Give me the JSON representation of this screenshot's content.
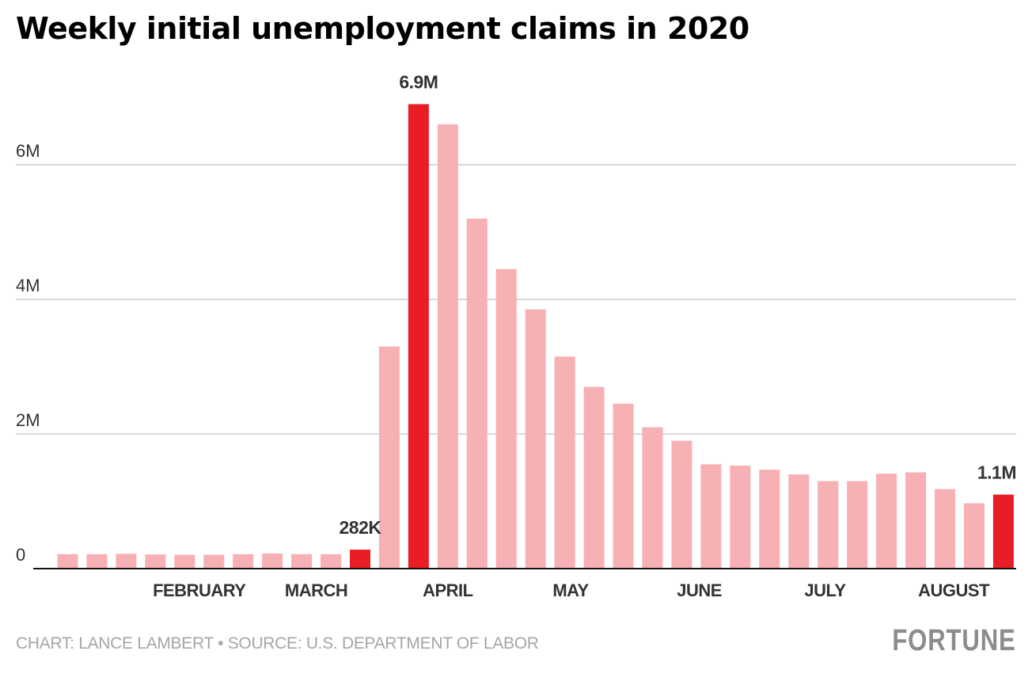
{
  "title": "Weekly initial unemployment claims in 2020",
  "footer": {
    "credit": "CHART: LANCE LAMBERT • SOURCE: U.S. DEPARTMENT OF LABOR",
    "logo": "FORTUNE"
  },
  "colors": {
    "bar": "#f7b0b4",
    "highlight": "#e91d25",
    "grid": "#cccccc",
    "axis": "#111111",
    "text": "#333333"
  },
  "chart_data": {
    "type": "bar",
    "ylim": [
      0,
      7000000
    ],
    "yticks": [
      {
        "value": 0,
        "label": "0"
      },
      {
        "value": 2000000,
        "label": "2M"
      },
      {
        "value": 4000000,
        "label": "4M"
      },
      {
        "value": 6000000,
        "label": "6M"
      }
    ],
    "grid": true,
    "month_labels": [
      {
        "label": "FEBRUARY",
        "index": 4.5
      },
      {
        "label": "MARCH",
        "index": 8.5
      },
      {
        "label": "APRIL",
        "index": 13
      },
      {
        "label": "MAY",
        "index": 17.2
      },
      {
        "label": "JUNE",
        "index": 21.6
      },
      {
        "label": "JULY",
        "index": 25.9
      },
      {
        "label": "AUGUST",
        "index": 30.3
      }
    ],
    "values": [
      215000,
      215000,
      220000,
      210000,
      205000,
      205000,
      215000,
      225000,
      215000,
      215000,
      282000,
      3300000,
      6900000,
      6600000,
      5200000,
      4450000,
      3850000,
      3150000,
      2700000,
      2450000,
      2100000,
      1900000,
      1550000,
      1530000,
      1470000,
      1400000,
      1300000,
      1300000,
      1410000,
      1430000,
      1180000,
      970000,
      1100000
    ],
    "highlight_indices": [
      10,
      12,
      32
    ],
    "annotations": [
      {
        "index": 10,
        "label": "282K"
      },
      {
        "index": 12,
        "label": "6.9M"
      },
      {
        "index": 32,
        "label": "1.1M"
      }
    ]
  }
}
